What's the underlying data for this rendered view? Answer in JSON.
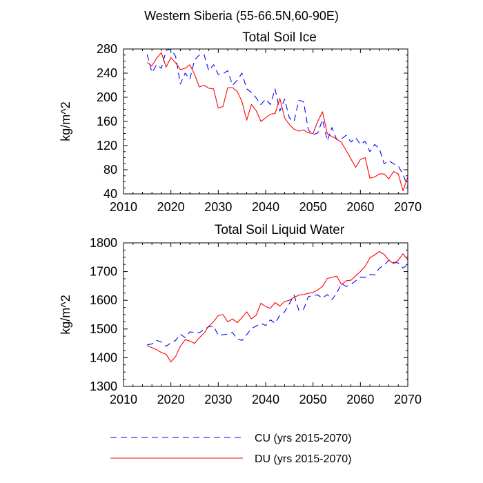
{
  "suptitle": "Western Siberia (55-66.5N,60-90E)",
  "colors": {
    "CU": "#0000ff",
    "DU": "#ff0000"
  },
  "legend": [
    {
      "key": "CU",
      "label": "CU (yrs 2015-2070)",
      "style": "dashed"
    },
    {
      "key": "DU",
      "label": "DU (yrs 2015-2070)",
      "style": "solid"
    }
  ],
  "chart_data": [
    {
      "type": "line",
      "title": "Total Soil Ice",
      "xlabel": "",
      "ylabel": "kg/m^2",
      "xlim": [
        2010,
        2070
      ],
      "ylim": [
        40,
        280
      ],
      "xticks": [
        2010,
        2020,
        2030,
        2040,
        2050,
        2060,
        2070
      ],
      "yticks": [
        40,
        80,
        120,
        160,
        200,
        240,
        280
      ],
      "x": [
        2015,
        2016,
        2017,
        2018,
        2019,
        2020,
        2021,
        2022,
        2023,
        2024,
        2025,
        2026,
        2027,
        2028,
        2029,
        2030,
        2031,
        2032,
        2033,
        2034,
        2035,
        2036,
        2037,
        2038,
        2039,
        2040,
        2041,
        2042,
        2043,
        2044,
        2045,
        2046,
        2047,
        2048,
        2049,
        2050,
        2051,
        2052,
        2053,
        2054,
        2055,
        2056,
        2057,
        2058,
        2059,
        2060,
        2061,
        2062,
        2063,
        2064,
        2065,
        2066,
        2067,
        2068,
        2069,
        2070
      ],
      "series": [
        {
          "name": "CU",
          "values": [
            271,
            241,
            254,
            248,
            278,
            280,
            268,
            222,
            240,
            230,
            262,
            270,
            271,
            244,
            254,
            238,
            239,
            244,
            220,
            228,
            240,
            214,
            208,
            199,
            188,
            197,
            188,
            214,
            177,
            197,
            166,
            160,
            195,
            193,
            146,
            138,
            141,
            163,
            128,
            150,
            130,
            131,
            137,
            126,
            133,
            122,
            127,
            110,
            122,
            115,
            90,
            95,
            90,
            86,
            72,
            52
          ]
        },
        {
          "name": "DU",
          "values": [
            258,
            252,
            265,
            274,
            250,
            266,
            257,
            246,
            248,
            254,
            238,
            217,
            220,
            215,
            214,
            182,
            185,
            216,
            216,
            210,
            193,
            162,
            188,
            178,
            160,
            166,
            172,
            173,
            198,
            166,
            155,
            147,
            144,
            146,
            141,
            140,
            160,
            176,
            140,
            135,
            131,
            125,
            112,
            98,
            84,
            97,
            100,
            66,
            68,
            73,
            73,
            65,
            77,
            73,
            45,
            68
          ]
        }
      ]
    },
    {
      "type": "line",
      "title": "Total Soil Liquid Water",
      "xlabel": "",
      "ylabel": "kg/m^2",
      "xlim": [
        2010,
        2070
      ],
      "ylim": [
        1300,
        1800
      ],
      "xticks": [
        2010,
        2020,
        2030,
        2040,
        2050,
        2060,
        2070
      ],
      "yticks": [
        1300,
        1400,
        1500,
        1600,
        1700,
        1800
      ],
      "x": [
        2015,
        2016,
        2017,
        2018,
        2019,
        2020,
        2021,
        2022,
        2023,
        2024,
        2025,
        2026,
        2027,
        2028,
        2029,
        2030,
        2031,
        2032,
        2033,
        2034,
        2035,
        2036,
        2037,
        2038,
        2039,
        2040,
        2041,
        2042,
        2043,
        2044,
        2045,
        2046,
        2047,
        2048,
        2049,
        2050,
        2051,
        2052,
        2053,
        2054,
        2055,
        2056,
        2057,
        2058,
        2059,
        2060,
        2061,
        2062,
        2063,
        2064,
        2065,
        2066,
        2067,
        2068,
        2069,
        2070
      ],
      "series": [
        {
          "name": "CU",
          "values": [
            1445,
            1448,
            1460,
            1455,
            1440,
            1452,
            1460,
            1482,
            1470,
            1490,
            1488,
            1487,
            1498,
            1508,
            1510,
            1478,
            1480,
            1482,
            1488,
            1465,
            1460,
            1480,
            1502,
            1510,
            1520,
            1512,
            1532,
            1520,
            1548,
            1560,
            1588,
            1618,
            1565,
            1568,
            1612,
            1618,
            1618,
            1608,
            1620,
            1602,
            1625,
            1658,
            1648,
            1655,
            1668,
            1680,
            1680,
            1690,
            1688,
            1712,
            1722,
            1740,
            1732,
            1730,
            1712,
            1725
          ]
        },
        {
          "name": "DU",
          "values": [
            1442,
            1435,
            1428,
            1418,
            1412,
            1385,
            1404,
            1440,
            1463,
            1458,
            1450,
            1470,
            1485,
            1510,
            1525,
            1547,
            1550,
            1525,
            1535,
            1522,
            1540,
            1560,
            1535,
            1548,
            1590,
            1578,
            1572,
            1592,
            1580,
            1596,
            1600,
            1610,
            1618,
            1620,
            1624,
            1628,
            1636,
            1648,
            1676,
            1680,
            1684,
            1655,
            1668,
            1670,
            1685,
            1700,
            1718,
            1748,
            1758,
            1770,
            1760,
            1740,
            1728,
            1740,
            1762,
            1740
          ]
        }
      ]
    }
  ]
}
